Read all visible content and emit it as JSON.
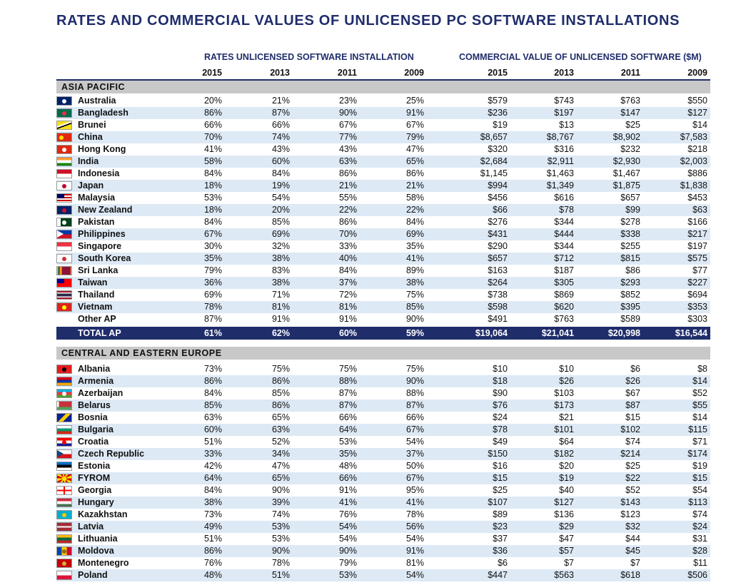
{
  "title": "RATES AND COMMERCIAL VALUES OF UNLICENSED PC SOFTWARE INSTALLATIONS",
  "group_headers": {
    "rates": "RATES UNLICENSED SOFTWARE INSTALLATION",
    "values": "COMMERCIAL VALUE OF UNLICENSED SOFTWARE ($M)"
  },
  "years": [
    "2015",
    "2013",
    "2011",
    "2009",
    "2015",
    "2013",
    "2011",
    "2009"
  ],
  "sections": [
    {
      "name": "ASIA PACIFIC",
      "rows": [
        {
          "country": "Australia",
          "flag": "australia-flag-icon",
          "values": [
            "20%",
            "21%",
            "23%",
            "25%",
            "$579",
            "$743",
            "$763",
            "$550"
          ]
        },
        {
          "country": "Bangladesh",
          "flag": "bangladesh-flag-icon",
          "values": [
            "86%",
            "87%",
            "90%",
            "91%",
            "$236",
            "$197",
            "$147",
            "$127"
          ]
        },
        {
          "country": "Brunei",
          "flag": "brunei-flag-icon",
          "values": [
            "66%",
            "66%",
            "67%",
            "67%",
            "$19",
            "$13",
            "$25",
            "$14"
          ]
        },
        {
          "country": "China",
          "flag": "china-flag-icon",
          "values": [
            "70%",
            "74%",
            "77%",
            "79%",
            "$8,657",
            "$8,767",
            "$8,902",
            "$7,583"
          ]
        },
        {
          "country": "Hong Kong",
          "flag": "hong-kong-flag-icon",
          "values": [
            "41%",
            "43%",
            "43%",
            "47%",
            "$320",
            "$316",
            "$232",
            "$218"
          ]
        },
        {
          "country": "India",
          "flag": "india-flag-icon",
          "values": [
            "58%",
            "60%",
            "63%",
            "65%",
            "$2,684",
            "$2,911",
            "$2,930",
            "$2,003"
          ]
        },
        {
          "country": "Indonesia",
          "flag": "indonesia-flag-icon",
          "values": [
            "84%",
            "84%",
            "86%",
            "86%",
            "$1,145",
            "$1,463",
            "$1,467",
            "$886"
          ]
        },
        {
          "country": "Japan",
          "flag": "japan-flag-icon",
          "values": [
            "18%",
            "19%",
            "21%",
            "21%",
            "$994",
            "$1,349",
            "$1,875",
            "$1,838"
          ]
        },
        {
          "country": "Malaysia",
          "flag": "malaysia-flag-icon",
          "values": [
            "53%",
            "54%",
            "55%",
            "58%",
            "$456",
            "$616",
            "$657",
            "$453"
          ]
        },
        {
          "country": "New Zealand",
          "flag": "new-zealand-flag-icon",
          "values": [
            "18%",
            "20%",
            "22%",
            "22%",
            "$66",
            "$78",
            "$99",
            "$63"
          ]
        },
        {
          "country": "Pakistan",
          "flag": "pakistan-flag-icon",
          "values": [
            "84%",
            "85%",
            "86%",
            "84%",
            "$276",
            "$344",
            "$278",
            "$166"
          ]
        },
        {
          "country": "Philippines",
          "flag": "philippines-flag-icon",
          "values": [
            "67%",
            "69%",
            "70%",
            "69%",
            "$431",
            "$444",
            "$338",
            "$217"
          ]
        },
        {
          "country": "Singapore",
          "flag": "singapore-flag-icon",
          "values": [
            "30%",
            "32%",
            "33%",
            "35%",
            "$290",
            "$344",
            "$255",
            "$197"
          ]
        },
        {
          "country": "South Korea",
          "flag": "south-korea-flag-icon",
          "values": [
            "35%",
            "38%",
            "40%",
            "41%",
            "$657",
            "$712",
            "$815",
            "$575"
          ]
        },
        {
          "country": "Sri Lanka",
          "flag": "sri-lanka-flag-icon",
          "values": [
            "79%",
            "83%",
            "84%",
            "89%",
            "$163",
            "$187",
            "$86",
            "$77"
          ]
        },
        {
          "country": "Taiwan",
          "flag": "taiwan-flag-icon",
          "values": [
            "36%",
            "38%",
            "37%",
            "38%",
            "$264",
            "$305",
            "$293",
            "$227"
          ]
        },
        {
          "country": "Thailand",
          "flag": "thailand-flag-icon",
          "values": [
            "69%",
            "71%",
            "72%",
            "75%",
            "$738",
            "$869",
            "$852",
            "$694"
          ]
        },
        {
          "country": "Vietnam",
          "flag": "vietnam-flag-icon",
          "values": [
            "78%",
            "81%",
            "81%",
            "85%",
            "$598",
            "$620",
            "$395",
            "$353"
          ]
        },
        {
          "country": "Other AP",
          "flag": "",
          "values": [
            "87%",
            "91%",
            "91%",
            "90%",
            "$491",
            "$763",
            "$589",
            "$303"
          ]
        }
      ],
      "total": {
        "label": "TOTAL AP",
        "values": [
          "61%",
          "62%",
          "60%",
          "59%",
          "$19,064",
          "$21,041",
          "$20,998",
          "$16,544"
        ]
      }
    },
    {
      "name": "CENTRAL AND EASTERN EUROPE",
      "rows": [
        {
          "country": "Albania",
          "flag": "albania-flag-icon",
          "values": [
            "73%",
            "75%",
            "75%",
            "75%",
            "$10",
            "$10",
            "$6",
            "$8"
          ]
        },
        {
          "country": "Armenia",
          "flag": "armenia-flag-icon",
          "values": [
            "86%",
            "86%",
            "88%",
            "90%",
            "$18",
            "$26",
            "$26",
            "$14"
          ]
        },
        {
          "country": "Azerbaijan",
          "flag": "azerbaijan-flag-icon",
          "values": [
            "84%",
            "85%",
            "87%",
            "88%",
            "$90",
            "$103",
            "$67",
            "$52"
          ]
        },
        {
          "country": "Belarus",
          "flag": "belarus-flag-icon",
          "values": [
            "85%",
            "86%",
            "87%",
            "87%",
            "$76",
            "$173",
            "$87",
            "$55"
          ]
        },
        {
          "country": "Bosnia",
          "flag": "bosnia-flag-icon",
          "values": [
            "63%",
            "65%",
            "66%",
            "66%",
            "$24",
            "$21",
            "$15",
            "$14"
          ]
        },
        {
          "country": "Bulgaria",
          "flag": "bulgaria-flag-icon",
          "values": [
            "60%",
            "63%",
            "64%",
            "67%",
            "$78",
            "$101",
            "$102",
            "$115"
          ]
        },
        {
          "country": "Croatia",
          "flag": "croatia-flag-icon",
          "values": [
            "51%",
            "52%",
            "53%",
            "54%",
            "$49",
            "$64",
            "$74",
            "$71"
          ]
        },
        {
          "country": "Czech Republic",
          "flag": "czech-republic-flag-icon",
          "values": [
            "33%",
            "34%",
            "35%",
            "37%",
            "$150",
            "$182",
            "$214",
            "$174"
          ]
        },
        {
          "country": "Estonia",
          "flag": "estonia-flag-icon",
          "values": [
            "42%",
            "47%",
            "48%",
            "50%",
            "$16",
            "$20",
            "$25",
            "$19"
          ]
        },
        {
          "country": "FYROM",
          "flag": "fyrom-flag-icon",
          "values": [
            "64%",
            "65%",
            "66%",
            "67%",
            "$15",
            "$19",
            "$22",
            "$15"
          ]
        },
        {
          "country": "Georgia",
          "flag": "georgia-flag-icon",
          "values": [
            "84%",
            "90%",
            "91%",
            "95%",
            "$25",
            "$40",
            "$52",
            "$54"
          ]
        },
        {
          "country": "Hungary",
          "flag": "hungary-flag-icon",
          "values": [
            "38%",
            "39%",
            "41%",
            "41%",
            "$107",
            "$127",
            "$143",
            "$113"
          ]
        },
        {
          "country": "Kazakhstan",
          "flag": "kazakhstan-flag-icon",
          "values": [
            "73%",
            "74%",
            "76%",
            "78%",
            "$89",
            "$136",
            "$123",
            "$74"
          ]
        },
        {
          "country": "Latvia",
          "flag": "latvia-flag-icon",
          "values": [
            "49%",
            "53%",
            "54%",
            "56%",
            "$23",
            "$29",
            "$32",
            "$24"
          ]
        },
        {
          "country": "Lithuania",
          "flag": "lithuania-flag-icon",
          "values": [
            "51%",
            "53%",
            "54%",
            "54%",
            "$37",
            "$47",
            "$44",
            "$31"
          ]
        },
        {
          "country": "Moldova",
          "flag": "moldova-flag-icon",
          "values": [
            "86%",
            "90%",
            "90%",
            "91%",
            "$36",
            "$57",
            "$45",
            "$28"
          ]
        },
        {
          "country": "Montenegro",
          "flag": "montenegro-flag-icon",
          "values": [
            "76%",
            "78%",
            "79%",
            "81%",
            "$6",
            "$7",
            "$7",
            "$11"
          ]
        },
        {
          "country": "Poland",
          "flag": "poland-flag-icon",
          "values": [
            "48%",
            "51%",
            "53%",
            "54%",
            "$447",
            "$563",
            "$618",
            "$506"
          ]
        }
      ]
    }
  ]
}
